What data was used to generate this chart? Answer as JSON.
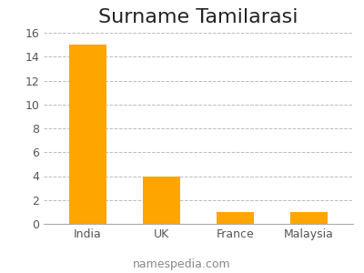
{
  "title": "Surname Tamilarasi",
  "categories": [
    "India",
    "UK",
    "France",
    "Malaysia"
  ],
  "values": [
    15,
    4,
    1,
    1
  ],
  "bar_color": "#FFA500",
  "ylim": [
    0,
    16
  ],
  "yticks": [
    0,
    2,
    4,
    6,
    8,
    10,
    12,
    14,
    16
  ],
  "grid_color": "#bbbbbb",
  "background_color": "#ffffff",
  "title_fontsize": 16,
  "tick_fontsize": 9,
  "footer_text": "namespedia.com",
  "footer_fontsize": 9,
  "footer_color": "#888888"
}
